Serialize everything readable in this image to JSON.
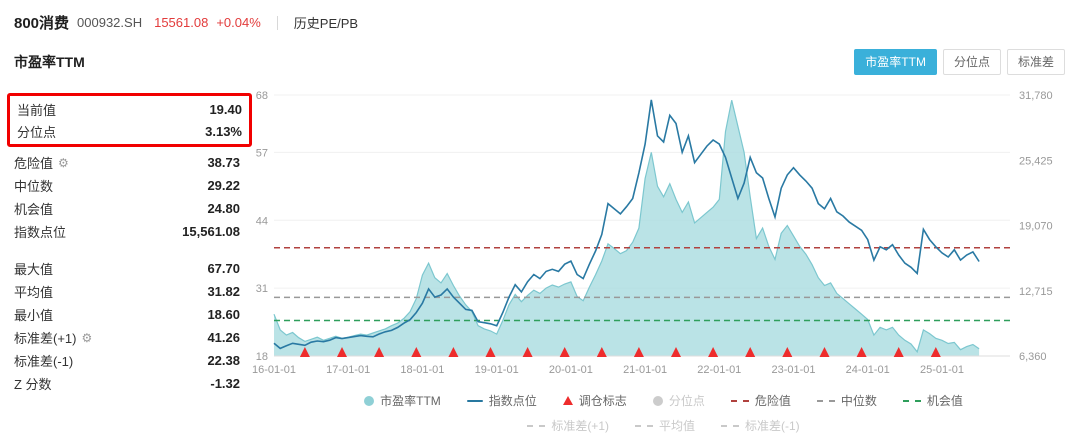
{
  "header": {
    "index_name": "800消费",
    "index_code": "000932.SH",
    "index_price": "15561.08",
    "index_change": "+0.04%",
    "history_label": "历史PE/PB"
  },
  "section": {
    "title": "市盈率TTM"
  },
  "tabs": [
    {
      "label": "市盈率TTM",
      "active": true
    },
    {
      "label": "分位点",
      "active": false
    },
    {
      "label": "标准差",
      "active": false
    }
  ],
  "stats": {
    "rows": [
      {
        "label": "当前值",
        "value": "19.40"
      },
      {
        "label": "分位点",
        "value": "3.13%"
      },
      {
        "label": "危险值",
        "value": "38.73"
      },
      {
        "label": "中位数",
        "value": "29.22"
      },
      {
        "label": "机会值",
        "value": "24.80"
      },
      {
        "label": "指数点位",
        "value": "15,561.08"
      },
      {
        "label": "最大值",
        "value": "67.70"
      },
      {
        "label": "平均值",
        "value": "31.82"
      },
      {
        "label": "最小值",
        "value": "18.60"
      },
      {
        "label": "标准差(+1)",
        "value": "41.26"
      },
      {
        "label": "标准差(-1)",
        "value": "22.38"
      },
      {
        "label": "Z 分数",
        "value": "-1.32"
      }
    ]
  },
  "legend": {
    "items": [
      {
        "label": "市盈率TTM",
        "enabled": true
      },
      {
        "label": "指数点位",
        "enabled": true
      },
      {
        "label": "调仓标志",
        "enabled": true
      },
      {
        "label": "分位点",
        "enabled": false
      },
      {
        "label": "危险值",
        "enabled": true
      },
      {
        "label": "中位数",
        "enabled": true
      },
      {
        "label": "机会值",
        "enabled": true
      },
      {
        "label": "标准差(+1)",
        "enabled": false
      },
      {
        "label": "平均值",
        "enabled": false
      },
      {
        "label": "标准差(-1)",
        "enabled": false
      }
    ]
  },
  "colors": {
    "accent_tab": "#3ab0da",
    "up_red": "#e23b3b",
    "highlight_box": "#f10000"
  },
  "chart_data": {
    "type": "area",
    "title": "市盈率TTM",
    "axis_total_months": 120,
    "x_start": "2016-01",
    "x_tick_labels": [
      "16-01-01",
      "17-01-01",
      "18-01-01",
      "19-01-01",
      "20-01-01",
      "21-01-01",
      "22-01-01",
      "23-01-01",
      "24-01-01",
      "25-01-01"
    ],
    "x_tick_month_indices": [
      0,
      12,
      24,
      36,
      48,
      60,
      72,
      84,
      96,
      108
    ],
    "left_axis": {
      "label": "市盈率TTM",
      "min": 18,
      "max": 68,
      "ticks": [
        18,
        31,
        44,
        57,
        68
      ]
    },
    "right_axis": {
      "label": "指数点位",
      "min": 6360,
      "max": 31780,
      "tick_values": [
        6360,
        12715,
        19070,
        25425,
        31780
      ],
      "tick_labels": [
        "6,360",
        "12,715",
        "19,070",
        "25,425",
        "31,780"
      ]
    },
    "series": [
      {
        "name": "市盈率TTM",
        "type": "area",
        "axis": "left",
        "color": "#a9dce0",
        "line_color": "#7cc7cf",
        "values": [
          26.0,
          23.0,
          22.0,
          22.5,
          21.5,
          20.8,
          21.2,
          21.6,
          21.0,
          21.4,
          21.8,
          21.4,
          21.6,
          21.9,
          22.2,
          22.0,
          22.4,
          22.8,
          23.2,
          23.8,
          24.3,
          25.2,
          26.5,
          29.0,
          33.5,
          35.8,
          33.0,
          32.0,
          33.8,
          31.5,
          29.5,
          27.8,
          26.5,
          23.8,
          23.2,
          22.8,
          22.2,
          24.8,
          27.8,
          29.8,
          28.4,
          29.6,
          30.6,
          30.0,
          31.0,
          31.6,
          31.2,
          31.8,
          32.2,
          29.4,
          28.6,
          31.2,
          33.6,
          36.2,
          39.5,
          38.6,
          37.6,
          38.2,
          39.8,
          42.5,
          52.0,
          57.0,
          50.5,
          48.5,
          51.0,
          48.0,
          45.5,
          47.5,
          43.5,
          44.5,
          45.5,
          46.5,
          48.0,
          61.0,
          67.0,
          62.0,
          57.0,
          48.5,
          40.5,
          42.5,
          39.0,
          36.5,
          41.5,
          43.0,
          41.0,
          39.0,
          37.5,
          35.5,
          33.0,
          31.5,
          32.0,
          30.0,
          29.0,
          28.0,
          27.0,
          26.0,
          25.0,
          22.0,
          23.5,
          23.0,
          23.5,
          22.0,
          21.0,
          20.3,
          18.8,
          23.0,
          22.3,
          21.4,
          21.0,
          20.4,
          20.6,
          19.2,
          19.8,
          20.2,
          19.4
        ]
      },
      {
        "name": "指数点位",
        "type": "line",
        "axis": "right",
        "color": "#2979a3",
        "values": [
          7600,
          7100,
          7350,
          7600,
          7500,
          7400,
          7700,
          7820,
          7750,
          7900,
          8150,
          8050,
          8150,
          8250,
          8350,
          8280,
          8230,
          8500,
          8720,
          8850,
          9150,
          9550,
          9900,
          10600,
          11500,
          12900,
          12100,
          12300,
          12900,
          12100,
          11500,
          10900,
          10800,
          9700,
          9600,
          9500,
          9300,
          10600,
          12100,
          13300,
          12600,
          13600,
          14300,
          13900,
          14600,
          14800,
          14600,
          15300,
          15600,
          14300,
          13900,
          15300,
          16600,
          18200,
          21200,
          20700,
          20200,
          20900,
          21700,
          24200,
          27000,
          31300,
          27800,
          27200,
          29800,
          29000,
          26200,
          27800,
          25200,
          26000,
          26800,
          27400,
          27000,
          25700,
          23700,
          21700,
          23200,
          25700,
          24200,
          23700,
          21700,
          19900,
          22700,
          24000,
          24700,
          24000,
          23400,
          22700,
          21200,
          20700,
          21700,
          20400,
          20000,
          19400,
          19000,
          18600,
          17700,
          15700,
          17000,
          16700,
          17200,
          16200,
          15400,
          15000,
          14400,
          18700,
          17700,
          17000,
          16400,
          16000,
          16700,
          15700,
          16200,
          16500,
          15561
        ]
      }
    ],
    "markers": {
      "name": "调仓标志",
      "color": "#ee2c2c",
      "month_indices": [
        5,
        11,
        17,
        23,
        29,
        35,
        41,
        47,
        53,
        59,
        65,
        71,
        77,
        83,
        89,
        95,
        101,
        107
      ]
    },
    "guides": [
      {
        "name": "危险值",
        "value": 38.73,
        "color": "#b0413e",
        "style": "dashed"
      },
      {
        "name": "中位数",
        "value": 29.22,
        "color": "#999999",
        "style": "dashed"
      },
      {
        "name": "机会值",
        "value": 24.8,
        "color": "#2e9e5b",
        "style": "dashed"
      }
    ]
  }
}
